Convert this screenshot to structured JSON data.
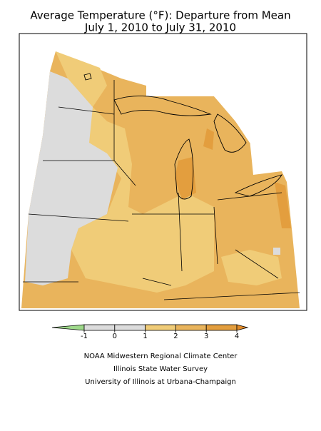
{
  "title": [
    "Average Temperature (°F): Departure from Mean",
    "July 1, 2010 to July 31, 2010"
  ],
  "legend": {
    "ticks": [
      -1,
      0,
      1,
      2,
      3,
      4
    ],
    "colors": [
      "#9ed98a",
      "#dcdcdc",
      "#dcdcdc",
      "#f0cc78",
      "#e9b45c",
      "#e39e3e",
      "#e08a28"
    ]
  },
  "credits": [
    "NOAA Midwestern Regional Climate Center",
    "Illinois State Water Survey",
    "University of Illinois at Urbana-Champaign"
  ]
}
